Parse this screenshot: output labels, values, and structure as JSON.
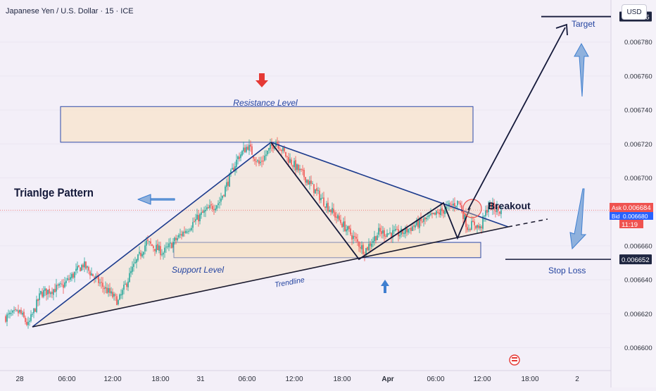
{
  "header": {
    "symbol_title": "Japanese Yen / U.S. Dollar · 15 · ICE",
    "currency_button": "USD"
  },
  "colors": {
    "background": "#f3eff8",
    "bull_candle": "#26a69a",
    "bear_candle": "#ef5350",
    "pattern_line": "#1b3a8c",
    "zone_fill": "#f8e4cc",
    "zone_border": "#2d4aa8",
    "annotation_text": "#2444a0",
    "arrow_red": "#e53935",
    "arrow_blue": "#3f7fd0",
    "current_price_line": "#ef5350",
    "tag_dark": "#1e2540"
  },
  "annotations": {
    "resistance_label": "Resistance Level",
    "support_label": "Support Level",
    "trendline_label": "Trendline",
    "pattern_title": "Trianlge Pattern",
    "breakout_label": "Breakout",
    "target_label": "Target",
    "stop_loss_label": "Stop Loss"
  },
  "price_tags": {
    "ask_label": "Ask",
    "ask_value": "0.006684",
    "bid_label": "Bid",
    "bid_value": "0.006680",
    "countdown": "11:19",
    "target_value": "0.006795",
    "stop_value": "0.006652"
  },
  "chart_data": {
    "type": "candlestick",
    "y_axis": {
      "ticks": [
        "0.006600",
        "0.006620",
        "0.006640",
        "0.006660",
        "0.006680",
        "0.006700",
        "0.006720",
        "0.006740",
        "0.006760",
        "0.006780"
      ],
      "range": [
        0.0065955,
        0.006806
      ]
    },
    "x_axis": {
      "ticks": [
        "28",
        "06:00",
        "12:00",
        "18:00",
        "31",
        "06:00",
        "12:00",
        "18:00",
        "Apr",
        "06:00",
        "12:00",
        "18:00",
        "2"
      ]
    },
    "anchors": [
      {
        "t": 0,
        "p": 0.006618
      },
      {
        "t": 10,
        "p": 0.006621
      },
      {
        "t": 16,
        "p": 0.006613
      },
      {
        "t": 25,
        "p": 0.006632
      },
      {
        "t": 40,
        "p": 0.006636
      },
      {
        "t": 55,
        "p": 0.006649
      },
      {
        "t": 68,
        "p": 0.006637
      },
      {
        "t": 80,
        "p": 0.006627
      },
      {
        "t": 90,
        "p": 0.006646
      },
      {
        "t": 100,
        "p": 0.006662
      },
      {
        "t": 112,
        "p": 0.006656
      },
      {
        "t": 125,
        "p": 0.006667
      },
      {
        "t": 140,
        "p": 0.006679
      },
      {
        "t": 152,
        "p": 0.006686
      },
      {
        "t": 165,
        "p": 0.006712
      },
      {
        "t": 172,
        "p": 0.006719
      },
      {
        "t": 180,
        "p": 0.006708
      },
      {
        "t": 192,
        "p": 0.006722
      },
      {
        "t": 200,
        "p": 0.006712
      },
      {
        "t": 212,
        "p": 0.006701
      },
      {
        "t": 225,
        "p": 0.006687
      },
      {
        "t": 240,
        "p": 0.006672
      },
      {
        "t": 255,
        "p": 0.006657
      },
      {
        "t": 265,
        "p": 0.006668
      },
      {
        "t": 280,
        "p": 0.006667
      },
      {
        "t": 295,
        "p": 0.006674
      },
      {
        "t": 305,
        "p": 0.006678
      },
      {
        "t": 315,
        "p": 0.006683
      },
      {
        "t": 322,
        "p": 0.006686
      },
      {
        "t": 328,
        "p": 0.006671
      },
      {
        "t": 333,
        "p": 0.006673
      },
      {
        "t": 337,
        "p": 0.00667
      },
      {
        "t": 343,
        "p": 0.006684
      },
      {
        "t": 352,
        "p": 0.00668
      }
    ],
    "candle_count": 352,
    "last_price": 0.006681,
    "zones": {
      "resistance": [
        0.006721,
        0.006742
      ],
      "support": [
        0.006653,
        0.006662
      ]
    },
    "levels": {
      "target": 0.006795,
      "stop_loss": 0.006652
    }
  }
}
